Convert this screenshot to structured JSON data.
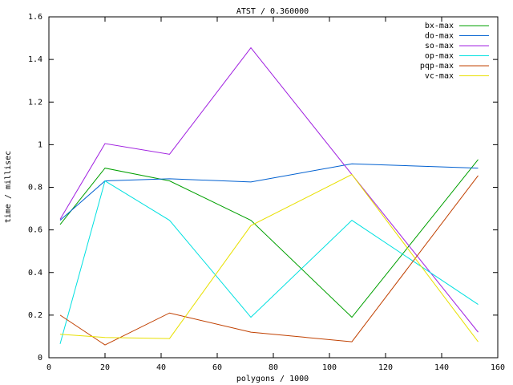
{
  "chart_data": {
    "type": "line",
    "title": "ATST / 0.360000",
    "x_label": "polygons / 1000",
    "y_label": "time / millisec",
    "x": [
      4,
      20,
      43,
      72,
      108,
      153
    ],
    "series": [
      {
        "name": "bx-max",
        "color": "#00a000",
        "values": [
          0.625,
          0.89,
          0.83,
          0.645,
          0.19,
          0.93
        ]
      },
      {
        "name": "do-max",
        "color": "#0060d0",
        "values": [
          0.645,
          0.83,
          0.84,
          0.825,
          0.91,
          0.89
        ]
      },
      {
        "name": "so-max",
        "color": "#a020e0",
        "values": [
          0.65,
          1.005,
          0.955,
          1.455,
          0.86,
          0.12
        ]
      },
      {
        "name": "op-max",
        "color": "#00e0e0",
        "values": [
          0.065,
          0.83,
          0.645,
          0.19,
          0.645,
          0.25
        ]
      },
      {
        "name": "pqp-max",
        "color": "#c04000",
        "values": [
          0.2,
          0.06,
          0.21,
          0.12,
          0.075,
          0.855
        ]
      },
      {
        "name": "vc-max",
        "color": "#e8e000",
        "values": [
          0.11,
          0.095,
          0.09,
          0.62,
          0.86,
          0.075
        ]
      }
    ],
    "xlim": [
      0,
      160
    ],
    "xticks": [
      0,
      20,
      40,
      60,
      80,
      100,
      120,
      140,
      160
    ],
    "ylim": [
      0,
      1.6
    ],
    "yticks": [
      0,
      0.2,
      0.4,
      0.6,
      0.8,
      1,
      1.2,
      1.4,
      1.6
    ],
    "grid": false,
    "legend": "top-right"
  }
}
